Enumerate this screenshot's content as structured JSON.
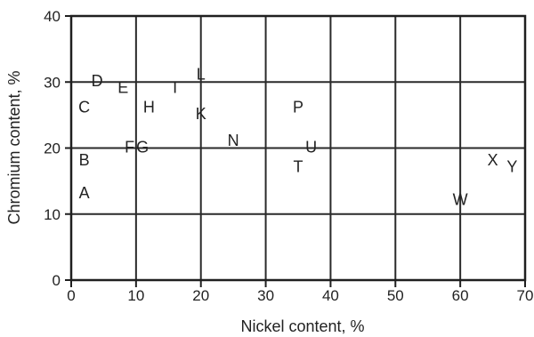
{
  "chart_data": {
    "type": "scatter",
    "xlabel": "Nickel content, %",
    "ylabel": "Chromium content, %",
    "xlim": [
      0,
      70
    ],
    "ylim": [
      0,
      40
    ],
    "x_ticks": [
      0,
      10,
      20,
      30,
      40,
      50,
      60,
      70
    ],
    "y_ticks": [
      0,
      10,
      20,
      30,
      40
    ],
    "grid": true,
    "points": [
      {
        "label": "A",
        "x": 2,
        "y": 13
      },
      {
        "label": "B",
        "x": 2,
        "y": 18
      },
      {
        "label": "C",
        "x": 2,
        "y": 26
      },
      {
        "label": "D",
        "x": 4,
        "y": 30
      },
      {
        "label": "E",
        "x": 8,
        "y": 29
      },
      {
        "label": "F",
        "x": 9,
        "y": 20
      },
      {
        "label": "G",
        "x": 11,
        "y": 20
      },
      {
        "label": "H",
        "x": 12,
        "y": 26
      },
      {
        "label": "I",
        "x": 16,
        "y": 29
      },
      {
        "label": "L",
        "x": 20,
        "y": 31
      },
      {
        "label": "K",
        "x": 20,
        "y": 25
      },
      {
        "label": "N",
        "x": 25,
        "y": 21
      },
      {
        "label": "P",
        "x": 35,
        "y": 26
      },
      {
        "label": "T",
        "x": 35,
        "y": 17
      },
      {
        "label": "U",
        "x": 37,
        "y": 20
      },
      {
        "label": "W",
        "x": 60,
        "y": 12
      },
      {
        "label": "X",
        "x": 65,
        "y": 18
      },
      {
        "label": "Y",
        "x": 68,
        "y": 17
      }
    ]
  }
}
